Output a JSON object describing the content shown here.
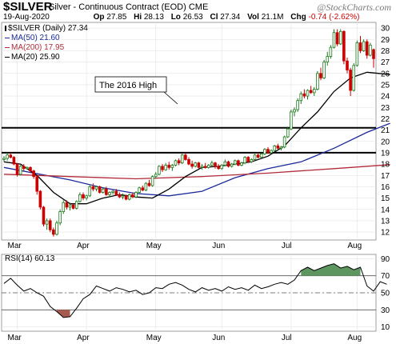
{
  "header": {
    "ticker": "$SILVER",
    "description": "Silver - Continuous Contract (EOD)",
    "exchange": "CME",
    "watermark": "@StockCharts.com",
    "date": "19-Aug-2020",
    "open": {
      "label": "Op",
      "value": "27.85"
    },
    "high": {
      "label": "Hi",
      "value": "28.13"
    },
    "low": {
      "label": "Lo",
      "value": "26.53"
    },
    "close": {
      "label": "Cl",
      "value": "27.34"
    },
    "volume": {
      "label": "Vol",
      "value": "21.1M"
    },
    "change": {
      "label": "Chg",
      "value": "-0.74 (-2.62%)"
    },
    "change_color": "#cc0000"
  },
  "legend": [
    {
      "text": "$SILVER (Daily) 27.34",
      "color": "#000000"
    },
    {
      "text": "MA(50) 21.60",
      "color": "#1a2a9a"
    },
    {
      "text": "MA(200) 17.95",
      "color": "#b22b3a"
    },
    {
      "text": "MA(20) 25.90",
      "color": "#000000"
    }
  ],
  "annotation": {
    "text": "The 2016 High"
  },
  "rsi_label": "RSI(14) 60.13",
  "chart_data": [
    {
      "type": "candlestick",
      "title": "$SILVER (Daily) 27.34",
      "y_ticks": [
        12,
        13,
        14,
        15,
        16,
        17,
        18,
        19,
        20,
        21,
        22,
        23,
        24,
        25,
        26,
        27,
        28,
        29,
        30
      ],
      "ylim": [
        11.3,
        30.5
      ],
      "x_ticks": [
        "Mar",
        "Apr",
        "May",
        "Jun",
        "Jul",
        "Aug"
      ],
      "horizontal_lines": [
        21.2,
        19.0
      ],
      "series": [
        {
          "name": "MA(50)",
          "color": "#1a2a9a",
          "x": [
            0,
            20,
            30,
            40,
            50,
            60,
            70,
            80,
            90,
            100,
            110,
            117
          ],
          "values": [
            17.7,
            16.6,
            15.9,
            15.4,
            15.2,
            15.6,
            16.8,
            17.6,
            18.2,
            19.4,
            20.8,
            21.6
          ]
        },
        {
          "name": "MA(200)",
          "color": "#b22b3a",
          "x": [
            0,
            20,
            40,
            60,
            80,
            100,
            117
          ],
          "values": [
            17.1,
            16.9,
            16.7,
            16.9,
            17.2,
            17.6,
            17.95
          ]
        },
        {
          "name": "MA(20)",
          "color": "#000000",
          "x": [
            0,
            5,
            10,
            15,
            20,
            25,
            30,
            35,
            40,
            45,
            50,
            55,
            60,
            65,
            70,
            75,
            80,
            85,
            90,
            95,
            100,
            105,
            110,
            117
          ],
          "values": [
            18.2,
            18.0,
            17.0,
            15.5,
            14.5,
            14.5,
            15.0,
            15.3,
            15.1,
            15.0,
            15.8,
            16.9,
            17.7,
            17.8,
            18.0,
            18.2,
            18.7,
            19.6,
            21.2,
            22.6,
            24.4,
            25.6,
            26.1,
            25.9
          ]
        }
      ],
      "candles": [
        [
          18.4,
          18.7,
          18.2,
          18.5
        ],
        [
          18.5,
          19.0,
          18.3,
          18.8
        ],
        [
          18.8,
          19.0,
          18.5,
          18.6
        ],
        [
          18.6,
          18.7,
          17.9,
          18.0
        ],
        [
          18.0,
          18.1,
          16.9,
          17.1
        ],
        [
          17.1,
          17.9,
          17.0,
          17.8
        ],
        [
          17.8,
          18.0,
          17.4,
          17.6
        ],
        [
          17.6,
          17.8,
          17.5,
          17.7
        ],
        [
          17.7,
          17.8,
          17.2,
          17.4
        ],
        [
          17.4,
          17.5,
          16.7,
          16.9
        ],
        [
          16.9,
          17.0,
          15.3,
          15.6
        ],
        [
          15.6,
          15.7,
          14.0,
          14.2
        ],
        [
          14.2,
          14.3,
          12.5,
          12.7
        ],
        [
          12.7,
          13.2,
          12.2,
          13.0
        ],
        [
          13.0,
          13.2,
          12.0,
          12.2
        ],
        [
          12.2,
          12.4,
          11.6,
          11.8
        ],
        [
          11.8,
          13.0,
          11.7,
          12.8
        ],
        [
          12.8,
          14.0,
          12.6,
          13.8
        ],
        [
          13.8,
          14.8,
          13.6,
          14.6
        ],
        [
          14.6,
          14.8,
          14.0,
          14.2
        ],
        [
          14.2,
          14.6,
          13.9,
          14.4
        ],
        [
          14.4,
          14.5,
          14.0,
          14.1
        ],
        [
          14.1,
          14.8,
          14.0,
          14.7
        ],
        [
          14.7,
          15.5,
          14.6,
          15.3
        ],
        [
          15.3,
          15.5,
          14.8,
          15.0
        ],
        [
          15.0,
          15.3,
          14.8,
          15.2
        ],
        [
          15.2,
          16.2,
          15.1,
          16.0
        ],
        [
          16.0,
          16.3,
          15.6,
          15.8
        ],
        [
          15.8,
          16.1,
          15.6,
          16.0
        ],
        [
          16.0,
          16.1,
          15.4,
          15.5
        ],
        [
          15.5,
          15.9,
          15.4,
          15.8
        ],
        [
          15.8,
          16.0,
          15.2,
          15.3
        ],
        [
          15.3,
          15.6,
          15.1,
          15.5
        ],
        [
          15.5,
          15.7,
          15.3,
          15.6
        ],
        [
          15.6,
          15.8,
          15.2,
          15.3
        ],
        [
          15.3,
          15.5,
          15.0,
          15.1
        ],
        [
          15.1,
          15.4,
          14.9,
          15.2
        ],
        [
          15.2,
          15.3,
          14.8,
          14.9
        ],
        [
          14.9,
          15.4,
          14.8,
          15.3
        ],
        [
          15.3,
          15.5,
          15.0,
          15.1
        ],
        [
          15.1,
          15.6,
          15.0,
          15.5
        ],
        [
          15.5,
          16.0,
          15.4,
          15.9
        ],
        [
          15.9,
          16.1,
          15.6,
          15.7
        ],
        [
          15.7,
          16.4,
          15.6,
          16.3
        ],
        [
          16.3,
          16.6,
          16.0,
          16.1
        ],
        [
          16.1,
          17.0,
          16.0,
          16.9
        ],
        [
          16.9,
          17.3,
          16.7,
          17.1
        ],
        [
          17.1,
          17.9,
          17.0,
          17.8
        ],
        [
          17.8,
          18.0,
          17.3,
          17.5
        ],
        [
          17.5,
          18.1,
          17.4,
          17.9
        ],
        [
          17.9,
          18.2,
          17.5,
          17.7
        ],
        [
          17.7,
          18.0,
          17.4,
          17.9
        ],
        [
          17.9,
          18.4,
          17.8,
          18.3
        ],
        [
          18.3,
          18.5,
          17.9,
          18.1
        ],
        [
          18.1,
          18.9,
          18.0,
          18.8
        ],
        [
          18.8,
          19.0,
          18.3,
          18.4
        ],
        [
          18.4,
          18.6,
          17.9,
          18.0
        ],
        [
          18.0,
          18.3,
          17.6,
          17.8
        ],
        [
          17.8,
          18.2,
          17.7,
          18.1
        ],
        [
          18.1,
          18.2,
          17.6,
          17.7
        ],
        [
          17.7,
          18.0,
          17.5,
          17.8
        ],
        [
          17.8,
          18.1,
          17.6,
          17.7
        ],
        [
          17.7,
          18.0,
          17.6,
          17.9
        ],
        [
          17.9,
          18.3,
          17.8,
          18.1
        ],
        [
          18.1,
          18.2,
          17.6,
          17.8
        ],
        [
          17.8,
          18.0,
          17.5,
          17.6
        ],
        [
          17.6,
          18.0,
          17.5,
          17.9
        ],
        [
          17.9,
          18.4,
          17.8,
          18.2
        ],
        [
          18.2,
          18.3,
          17.7,
          17.8
        ],
        [
          17.8,
          18.1,
          17.7,
          18.0
        ],
        [
          18.0,
          18.4,
          17.9,
          18.3
        ],
        [
          18.3,
          18.4,
          17.8,
          17.9
        ],
        [
          17.9,
          18.2,
          17.8,
          18.1
        ],
        [
          18.1,
          18.7,
          18.0,
          18.6
        ],
        [
          18.6,
          18.7,
          18.1,
          18.2
        ],
        [
          18.2,
          18.5,
          18.1,
          18.4
        ],
        [
          18.4,
          18.9,
          18.3,
          18.8
        ],
        [
          18.8,
          19.0,
          18.5,
          18.6
        ],
        [
          18.6,
          19.0,
          18.5,
          18.9
        ],
        [
          18.9,
          19.4,
          18.8,
          19.3
        ],
        [
          19.3,
          19.5,
          18.9,
          19.0
        ],
        [
          19.0,
          19.3,
          18.9,
          19.2
        ],
        [
          19.2,
          19.7,
          19.1,
          19.6
        ],
        [
          19.6,
          19.8,
          19.3,
          19.4
        ],
        [
          19.4,
          19.6,
          19.2,
          19.5
        ],
        [
          19.5,
          20.5,
          19.4,
          20.4
        ],
        [
          20.4,
          21.3,
          20.3,
          21.1
        ],
        [
          21.1,
          22.8,
          21.0,
          22.6
        ],
        [
          22.6,
          23.0,
          22.2,
          22.8
        ],
        [
          22.8,
          23.8,
          22.6,
          23.6
        ],
        [
          23.6,
          24.4,
          23.3,
          24.2
        ],
        [
          24.2,
          24.6,
          23.8,
          24.0
        ],
        [
          24.0,
          24.6,
          23.7,
          24.5
        ],
        [
          24.5,
          24.9,
          24.2,
          24.3
        ],
        [
          24.3,
          24.8,
          24.0,
          24.6
        ],
        [
          24.6,
          26.2,
          24.5,
          26.0
        ],
        [
          26.0,
          26.5,
          25.4,
          25.6
        ],
        [
          25.6,
          27.2,
          25.5,
          27.0
        ],
        [
          27.0,
          27.9,
          26.7,
          27.5
        ],
        [
          27.5,
          28.5,
          27.3,
          28.3
        ],
        [
          28.3,
          29.9,
          28.2,
          29.6
        ],
        [
          29.6,
          29.9,
          28.4,
          28.6
        ],
        [
          28.6,
          29.9,
          28.5,
          29.7
        ],
        [
          29.7,
          29.8,
          26.8,
          27.1
        ],
        [
          27.1,
          27.4,
          26.0,
          26.3
        ],
        [
          26.3,
          26.5,
          24.0,
          24.5
        ],
        [
          24.5,
          26.9,
          24.4,
          26.7
        ],
        [
          26.7,
          28.9,
          26.6,
          28.7
        ],
        [
          28.7,
          29.3,
          27.8,
          28.0
        ],
        [
          28.0,
          29.0,
          27.9,
          28.8
        ],
        [
          28.8,
          29.0,
          27.3,
          27.6
        ],
        [
          27.6,
          28.7,
          27.5,
          28.5
        ],
        [
          28.1,
          28.2,
          26.5,
          27.3
        ]
      ]
    },
    {
      "type": "line",
      "title": "RSI(14) 60.13",
      "y_ticks": [
        10,
        30,
        50,
        70,
        90
      ],
      "ylim": [
        5,
        95
      ],
      "reference_lines": [
        70,
        50,
        30
      ],
      "x_ticks": [
        "Mar",
        "Apr",
        "May",
        "Jun",
        "Jul",
        "Aug"
      ],
      "series": [
        {
          "name": "RSI(14)",
          "color": "#000000",
          "x": [
            0,
            2,
            4,
            6,
            8,
            10,
            12,
            14,
            16,
            18,
            20,
            22,
            24,
            26,
            28,
            30,
            32,
            34,
            36,
            38,
            40,
            42,
            44,
            46,
            48,
            50,
            52,
            54,
            56,
            58,
            60,
            62,
            64,
            66,
            68,
            70,
            72,
            74,
            76,
            78,
            80,
            82,
            84,
            86,
            88,
            90,
            92,
            94,
            96,
            98,
            100,
            102,
            104,
            106,
            108,
            110,
            112,
            114,
            116
          ],
          "values": [
            61,
            67,
            59,
            52,
            55,
            50,
            46,
            34,
            28,
            21,
            22,
            32,
            43,
            48,
            58,
            55,
            52,
            56,
            54,
            51,
            53,
            48,
            50,
            56,
            55,
            60,
            62,
            59,
            54,
            51,
            56,
            53,
            55,
            52,
            57,
            54,
            56,
            53,
            59,
            55,
            57,
            60,
            62,
            60,
            65,
            76,
            80,
            76,
            79,
            82,
            84,
            79,
            81,
            77,
            80,
            58,
            52,
            63,
            60
          ]
        }
      ]
    }
  ]
}
